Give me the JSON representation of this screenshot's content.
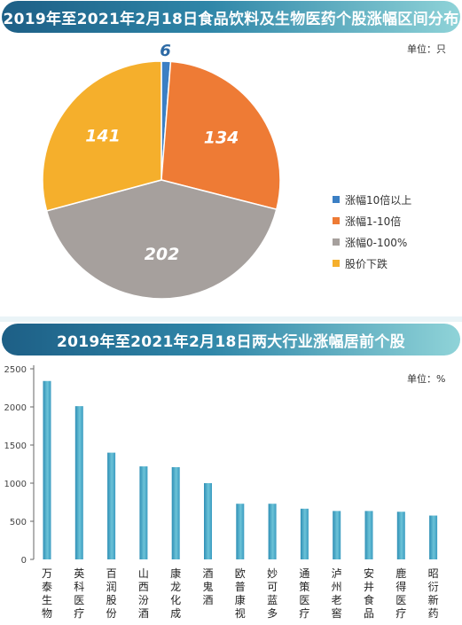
{
  "top": {
    "title": "2019年至2021年2月18日食品饮料及生物医药个股涨幅区间分布",
    "unit": "单位：只"
  },
  "bottom": {
    "title": "2019年至2021年2月18日两大行业涨幅居前个股",
    "unit": "单位：%"
  },
  "chart_data": [
    {
      "type": "pie",
      "slices": [
        {
          "label": "涨幅10倍以上",
          "value": 6,
          "color": "#3b7fc4"
        },
        {
          "label": "涨幅1-10倍",
          "value": 134,
          "color": "#ee7b35"
        },
        {
          "label": "涨幅0-100%",
          "value": 202,
          "color": "#a6a09d"
        },
        {
          "label": "股价下跌",
          "value": 141,
          "color": "#f5af2c"
        }
      ]
    },
    {
      "type": "bar",
      "categories": [
        "万泰生物",
        "英科医疗",
        "百润股份",
        "山西汾酒",
        "康龙化成",
        "酒鬼酒",
        "欧普康视",
        "妙可蓝多",
        "通策医疗",
        "泸州老窖",
        "安井食品",
        "鹿得医疗",
        "昭衍新药"
      ],
      "values": [
        2340,
        2010,
        1400,
        1220,
        1210,
        1000,
        730,
        730,
        665,
        635,
        635,
        625,
        575
      ],
      "ylim": [
        0,
        2500
      ],
      "yticks": [
        0,
        500,
        1000,
        1500,
        2000,
        2500
      ],
      "grid": false,
      "bar_color": "#4aa6c6"
    }
  ]
}
